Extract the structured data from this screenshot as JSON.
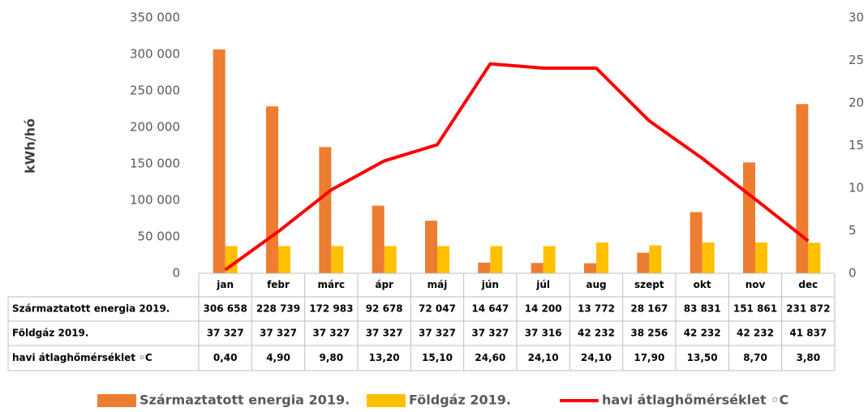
{
  "chart_data": {
    "type": "bar",
    "y_axis_label": "kWh/hó",
    "categories": [
      "jan",
      "febr",
      "márc",
      "ápr",
      "máj",
      "jún",
      "júl",
      "aug",
      "szept",
      "okt",
      "nov",
      "dec"
    ],
    "series": [
      {
        "name": "Származtatott energia 2019.",
        "color": "#ED7D31",
        "type": "bar",
        "values": [
          306658,
          228739,
          172983,
          92678,
          72047,
          14647,
          14200,
          13772,
          28167,
          83831,
          151861,
          231872
        ],
        "value_labels": [
          "306 658",
          "228 739",
          "172 983",
          "92 678",
          "72 047",
          "14 647",
          "14 200",
          "13 772",
          "28 167",
          "83 831",
          "151 861",
          "231 872"
        ]
      },
      {
        "name": "Földgáz 2019.",
        "color": "#FFC000",
        "type": "bar",
        "values": [
          37327,
          37327,
          37327,
          37327,
          37327,
          37327,
          37316,
          42232,
          38256,
          42232,
          42232,
          41837
        ],
        "value_labels": [
          "37 327",
          "37 327",
          "37 327",
          "37 327",
          "37 327",
          "37 327",
          "37 316",
          "42 232",
          "38 256",
          "42 232",
          "42 232",
          "41 837"
        ]
      },
      {
        "name": "havi átlaghőmérséklet ◦C",
        "color": "#FF0000",
        "type": "line",
        "axis": "y2",
        "values": [
          0.4,
          4.9,
          9.8,
          13.2,
          15.1,
          24.6,
          24.1,
          24.1,
          17.9,
          13.5,
          8.7,
          3.8
        ],
        "value_labels": [
          "0,40",
          "4,90",
          "9,80",
          "13,20",
          "15,10",
          "24,60",
          "24,10",
          "24,10",
          "17,90",
          "13,50",
          "8,70",
          "3,80"
        ]
      }
    ],
    "ylim": [
      0,
      350000
    ],
    "yticks": [
      {
        "value": 0,
        "label": "0"
      },
      {
        "value": 50000,
        "label": "50 000"
      },
      {
        "value": 100000,
        "label": "100 000"
      },
      {
        "value": 150000,
        "label": "150 000"
      },
      {
        "value": 200000,
        "label": "200 000"
      },
      {
        "value": 250000,
        "label": "250 000"
      },
      {
        "value": 300000,
        "label": "300 000"
      },
      {
        "value": 350000,
        "label": "350 000"
      }
    ],
    "y2lim": [
      0,
      30
    ],
    "y2ticks": [
      0,
      5,
      10,
      15,
      20,
      25,
      30
    ],
    "legend": "bottom"
  }
}
